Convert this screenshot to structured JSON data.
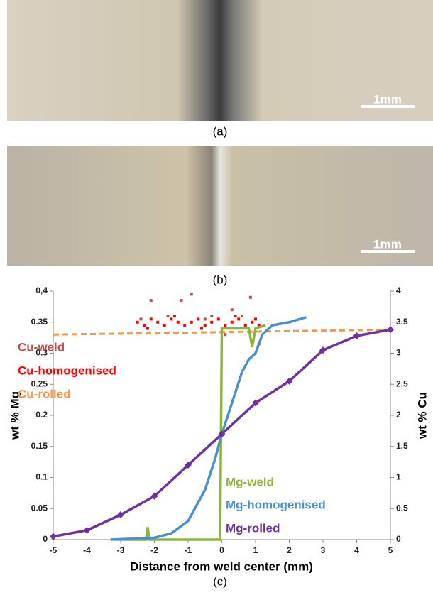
{
  "micrographs": [
    {
      "scale_bar": "1mm",
      "caption": "(a)"
    },
    {
      "scale_bar": "1mm",
      "caption": "(b)"
    }
  ],
  "chart_caption": "(c)",
  "chart_data": {
    "type": "line",
    "xlabel": "Distance from weld center (mm)",
    "ylabel": "wt % Mg",
    "y2label": "wt % Cu",
    "xlim": [
      -5,
      5
    ],
    "xticks": [
      -5,
      -4,
      -3,
      -2,
      -1,
      0,
      1,
      2,
      3,
      4,
      5
    ],
    "ylim": [
      0,
      0.4
    ],
    "yticks": [
      0,
      0.05,
      0.1,
      0.15,
      0.2,
      0.25,
      0.3,
      0.35,
      {
        "value": 0.4,
        "label": "0,4"
      }
    ],
    "y2lim": [
      0,
      4
    ],
    "y2ticks": [
      0,
      0.5,
      1,
      1.5,
      2,
      2.5,
      3,
      3.5,
      4
    ],
    "series": [
      {
        "name": "Cu-weld",
        "color": "#c0504d",
        "axis": "y2",
        "mode": "markers",
        "x": [
          -2.4,
          -2.1,
          -1.6,
          -1.2,
          -0.9,
          -0.5,
          -0.3,
          0.1,
          0.3,
          0.6,
          0.85,
          1.1
        ],
        "values": [
          3.55,
          3.85,
          3.6,
          3.85,
          3.95,
          3.55,
          3.6,
          3.3,
          3.7,
          3.6,
          3.9,
          3.15
        ]
      },
      {
        "name": "Cu-homogenised",
        "color": "#ff0000",
        "axis": "y2",
        "mode": "markers",
        "x": [
          -2.5,
          -2.3,
          -2.1,
          -1.9,
          -1.7,
          -1.5,
          -1.3,
          -1.1,
          -0.9,
          -0.7,
          -0.5,
          -0.3,
          -0.1,
          0.1,
          0.3,
          0.5,
          0.7,
          0.9,
          1.1,
          -2.2,
          -1.4,
          -0.6,
          0.4,
          1.0
        ],
        "values": [
          3.5,
          3.45,
          3.55,
          3.5,
          3.45,
          3.55,
          3.5,
          3.45,
          3.5,
          3.55,
          3.45,
          3.5,
          3.55,
          3.45,
          3.5,
          3.55,
          3.45,
          3.5,
          3.45,
          3.4,
          3.6,
          3.4,
          3.6,
          3.55
        ]
      },
      {
        "name": "Cu-rolled",
        "color": "#f79646",
        "axis": "y2",
        "mode": "dashed",
        "x": [
          -5,
          5
        ],
        "values": [
          3.3,
          3.38
        ]
      },
      {
        "name": "Mg-weld",
        "color": "#8db53c",
        "mode": "line",
        "x": [
          -3.2,
          -2.25,
          -2.2,
          -2.15,
          -0.05,
          0,
          0.05,
          0.8,
          0.9,
          1.0,
          1.3
        ],
        "values": [
          0,
          0,
          0.02,
          0,
          0,
          0.34,
          0.34,
          0.34,
          0.31,
          0.34,
          0.345
        ]
      },
      {
        "name": "Mg-homogenised",
        "color": "#4a90d0",
        "mode": "line",
        "x": [
          -3.3,
          -2,
          -1.5,
          -1,
          -0.5,
          -0.2,
          0,
          0.3,
          0.6,
          0.8,
          1,
          1.2,
          1.5,
          2,
          2.5
        ],
        "values": [
          0,
          0.003,
          0.01,
          0.03,
          0.08,
          0.13,
          0.17,
          0.22,
          0.27,
          0.29,
          0.3,
          0.33,
          0.345,
          0.35,
          0.358
        ]
      },
      {
        "name": "Mg-rolled",
        "color": "#7030a0",
        "mode": "line-markers",
        "x": [
          -5,
          -4,
          -3,
          -2,
          -1,
          0,
          1,
          2,
          3,
          4,
          5
        ],
        "values": [
          0.005,
          0.015,
          0.04,
          0.07,
          0.12,
          0.17,
          0.22,
          0.255,
          0.305,
          0.328,
          0.338
        ]
      }
    ]
  }
}
